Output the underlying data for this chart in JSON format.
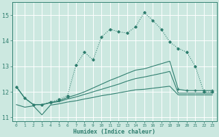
{
  "xlabel": "Humidex (Indice chaleur)",
  "bg_color": "#cce8e0",
  "grid_color": "#b0d8ce",
  "line_color": "#2e7d6e",
  "x_values": [
    0,
    1,
    2,
    3,
    4,
    5,
    6,
    7,
    8,
    9,
    10,
    11,
    12,
    13,
    14,
    15,
    16,
    17,
    18,
    19,
    20,
    21,
    22,
    23
  ],
  "line_hump": [
    12.2,
    11.75,
    11.5,
    11.5,
    11.6,
    11.7,
    11.85,
    13.05,
    13.55,
    13.25,
    14.15,
    14.45,
    14.35,
    14.3,
    14.55,
    15.1,
    14.8,
    14.45,
    13.95,
    13.7,
    13.55,
    13.0,
    12.0,
    12.0
  ],
  "line_upper": [
    12.2,
    11.75,
    11.5,
    11.5,
    11.58,
    11.65,
    11.78,
    11.88,
    12.0,
    12.15,
    12.3,
    12.45,
    12.58,
    12.72,
    12.85,
    12.9,
    13.0,
    13.1,
    13.2,
    12.1,
    12.05,
    12.05,
    12.05,
    12.05
  ],
  "line_mid": [
    12.2,
    11.75,
    11.5,
    11.5,
    11.57,
    11.62,
    11.72,
    11.8,
    11.9,
    12.0,
    12.1,
    12.2,
    12.3,
    12.42,
    12.52,
    12.58,
    12.65,
    12.72,
    12.8,
    11.95,
    11.95,
    11.95,
    11.95,
    11.95
  ],
  "line_lower": [
    11.5,
    11.4,
    11.45,
    11.1,
    11.48,
    11.53,
    11.6,
    11.65,
    11.72,
    11.78,
    11.85,
    11.9,
    11.96,
    12.02,
    12.08,
    12.1,
    12.14,
    12.18,
    12.22,
    11.88,
    11.88,
    11.88,
    11.88,
    11.88
  ],
  "ylim": [
    10.85,
    15.5
  ],
  "xlim": [
    -0.5,
    23.5
  ]
}
